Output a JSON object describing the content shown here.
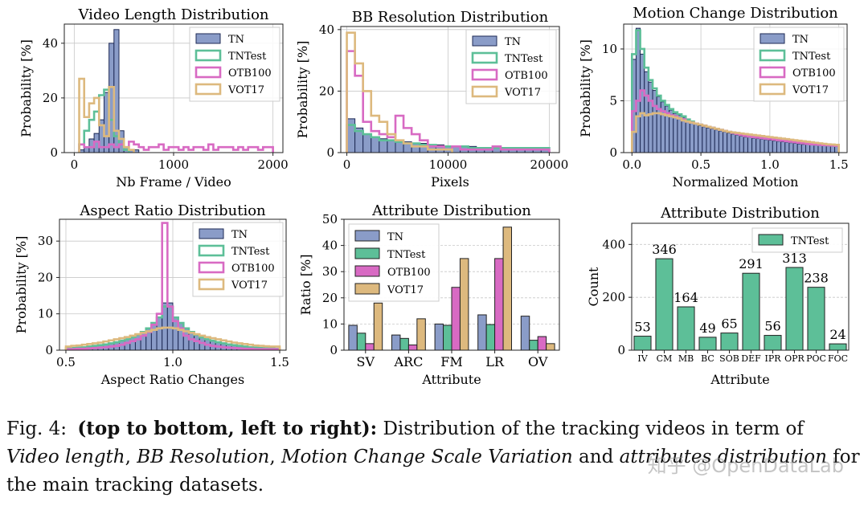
{
  "colors": {
    "TN": "#8a9cc8",
    "TN_edge": "#1e2a55",
    "TNTest": "#5dbf98",
    "OTB100": "#d86ac3",
    "VOT17": "#ddb97e",
    "grid": "#c8c8c8"
  },
  "chart_data": [
    {
      "id": "c1",
      "type": "histogram",
      "title": "Video Length Distribution",
      "xlabel": "Nb Frame / Video",
      "ylabel": "Probability [%]",
      "xlim": [
        -100,
        2100
      ],
      "ylim": [
        0,
        47
      ],
      "xticks": [
        0,
        1000,
        2000
      ],
      "yticks": [
        0,
        20,
        40
      ],
      "legend": [
        "TN",
        "TNTest",
        "OTB100",
        "VOT17"
      ],
      "legend_position": "top-right",
      "bins": {
        "start": 50,
        "width": 50
      },
      "series": [
        {
          "name": "TN",
          "style": "bar",
          "values": [
            1,
            2,
            5,
            7,
            12,
            22,
            40,
            45,
            8,
            2,
            1,
            1
          ]
        },
        {
          "name": "TNTest",
          "style": "step",
          "values": [
            3,
            8,
            12,
            15,
            21,
            23,
            12,
            6,
            3,
            1
          ]
        },
        {
          "name": "OTB100",
          "style": "step",
          "values": [
            3,
            2,
            2,
            4,
            2,
            2,
            3,
            2,
            3,
            2,
            4,
            3,
            2,
            1,
            2,
            2,
            3,
            1,
            2,
            2,
            1,
            2,
            1,
            2,
            2,
            1,
            3,
            1,
            2,
            2,
            2,
            1,
            2,
            1,
            2,
            2,
            1,
            2,
            2
          ]
        },
        {
          "name": "VOT17",
          "style": "step",
          "values": [
            27,
            13,
            18,
            20,
            10,
            6,
            24,
            8,
            5,
            2,
            1
          ]
        }
      ]
    },
    {
      "id": "c2",
      "type": "histogram",
      "title": "BB Resolution Distribution",
      "xlabel": "Pixels",
      "ylabel": "Probability [%]",
      "xlim": [
        -600,
        21000
      ],
      "ylim": [
        0,
        41
      ],
      "xticks": [
        0,
        10000,
        20000
      ],
      "yticks": [
        0,
        20,
        40
      ],
      "legend": [
        "TN",
        "TNTest",
        "OTB100",
        "VOT17"
      ],
      "legend_position": "top-right",
      "bins": {
        "start": 0,
        "width": 800
      },
      "series": [
        {
          "name": "TN",
          "style": "bar",
          "values": [
            11,
            8,
            6,
            5,
            4.5,
            4,
            4,
            3.5,
            3,
            3,
            2.5,
            2.5,
            2,
            2,
            2,
            2,
            1.5,
            1.5,
            1.5,
            1.5,
            1.5,
            1.5,
            1.5,
            1.5,
            1.5
          ]
        },
        {
          "name": "TNTest",
          "style": "step",
          "values": [
            9,
            7,
            6,
            5,
            4,
            4,
            3.5,
            3,
            3,
            2.5,
            2.5,
            2,
            2,
            2,
            2,
            1.5,
            1.5,
            1.5,
            1.5,
            1.5,
            1.5,
            1.5,
            1.5,
            1.5,
            1.5
          ]
        },
        {
          "name": "OTB100",
          "style": "step",
          "values": [
            33,
            25,
            10,
            7,
            6,
            5,
            12,
            8,
            6,
            4,
            2,
            2,
            1,
            2,
            1,
            1,
            1,
            1,
            2,
            1,
            1,
            1,
            1,
            1,
            1
          ]
        },
        {
          "name": "VOT17",
          "style": "step",
          "values": [
            39,
            29,
            20,
            12,
            10,
            6,
            4,
            3,
            2,
            2,
            1,
            1,
            1
          ]
        }
      ]
    },
    {
      "id": "c3",
      "type": "histogram",
      "title": "Motion Change Distribution",
      "xlabel": "Normalized Motion",
      "ylabel": "Probability [%]",
      "xlim": [
        -0.06,
        1.56
      ],
      "ylim": [
        0,
        12.4
      ],
      "xticks": [
        0.0,
        0.5,
        1.0,
        1.5
      ],
      "yticks": [
        0,
        5,
        10
      ],
      "legend": [
        "TN",
        "TNTest",
        "OTB100",
        "VOT17"
      ],
      "legend_position": "top-right",
      "bins": {
        "start": 0,
        "width": 0.03
      },
      "series": [
        {
          "name": "TN",
          "style": "bar",
          "values": [
            9,
            12,
            9.5,
            7.8,
            6.8,
            6,
            5.4,
            4.9,
            4.5,
            4.1,
            3.8,
            3.6,
            3.4,
            3.2,
            3,
            2.8,
            2.6,
            2.5,
            2.4,
            2.3,
            2.2,
            2.1,
            2.0,
            1.9,
            1.8,
            1.7,
            1.6,
            1.5,
            1.5,
            1.4,
            1.35,
            1.3,
            1.25,
            1.2,
            1.15,
            1.1,
            1.05,
            1.0,
            0.95,
            0.9,
            0.85,
            0.8,
            0.78,
            0.75,
            0.72,
            0.7,
            0.68,
            0.65,
            0.62,
            0.6
          ]
        },
        {
          "name": "TNTest",
          "style": "step",
          "values": [
            9.5,
            11.8,
            10,
            8.2,
            7,
            6.2,
            5.5,
            5,
            4.6,
            4.2,
            3.9,
            3.7,
            3.5,
            3.2,
            3,
            2.8,
            2.7,
            2.6,
            2.5,
            2.4,
            2.3,
            2.2,
            2.1,
            2.0,
            1.9,
            1.8,
            1.7,
            1.6,
            1.55,
            1.5,
            1.45,
            1.4,
            1.35,
            1.3,
            1.25,
            1.2,
            1.15,
            1.1,
            1.05,
            1.0,
            0.95,
            0.9,
            0.85,
            0.8,
            0.78,
            0.75,
            0.72,
            0.7,
            0.68,
            0.65
          ]
        },
        {
          "name": "OTB100",
          "style": "step",
          "values": [
            4,
            5,
            6,
            5.5,
            5,
            4.5,
            4.2,
            4,
            3.8,
            3.6,
            3.5,
            3.3,
            3.2,
            3,
            2.9,
            2.8,
            2.7,
            2.6,
            2.5,
            2.4,
            2.3,
            2.2,
            2.1,
            2.0,
            1.9,
            1.8,
            1.7,
            1.6,
            1.55,
            1.5,
            1.45,
            1.4,
            1.35,
            1.3,
            1.25,
            1.2,
            1.15,
            1.1,
            1.05,
            1.0,
            0.95,
            0.9,
            0.85,
            0.8,
            0.78,
            0.75,
            0.72,
            0.7,
            0.68,
            0.65
          ]
        },
        {
          "name": "VOT17",
          "style": "step",
          "values": [
            2,
            3.5,
            3.8,
            3.6,
            3.7,
            3.8,
            3.8,
            3.7,
            3.6,
            3.5,
            3.4,
            3.3,
            3.1,
            3,
            2.9,
            2.8,
            2.7,
            2.6,
            2.5,
            2.4,
            2.3,
            2.2,
            2.1,
            2.0,
            1.95,
            1.9,
            1.85,
            1.8,
            1.75,
            1.7,
            1.65,
            1.6,
            1.55,
            1.5,
            1.45,
            1.4,
            1.35,
            1.3,
            1.25,
            1.2,
            1.15,
            1.1,
            1.05,
            1.0,
            0.95,
            0.9,
            0.85,
            0.8,
            0.78,
            0.75
          ]
        }
      ]
    },
    {
      "id": "c4",
      "type": "histogram",
      "title": "Aspect Ratio Distribution",
      "xlabel": "Aspect Ratio Changes",
      "ylabel": "Probability [%]",
      "xlim": [
        0.47,
        1.53
      ],
      "ylim": [
        0,
        36
      ],
      "xticks": [
        0.5,
        1.0,
        1.5
      ],
      "yticks": [
        0,
        10,
        20,
        30
      ],
      "legend": [
        "TN",
        "TNTest",
        "OTB100",
        "VOT17"
      ],
      "legend_position": "top-right",
      "bins": {
        "start": 0.5,
        "width": 0.025
      },
      "series": [
        {
          "name": "TN",
          "style": "bar",
          "values": [
            0.5,
            0.6,
            0.7,
            0.8,
            1.0,
            1.2,
            1.4,
            1.6,
            1.9,
            2.2,
            2.6,
            3.0,
            3.5,
            4.2,
            5,
            6,
            7.5,
            9,
            13,
            13,
            9,
            7.5,
            6,
            5,
            4.2,
            3.5,
            3.0,
            2.6,
            2.2,
            1.9,
            1.6,
            1.4,
            1.2,
            1.0,
            0.8,
            0.7,
            0.6,
            0.5,
            0.5,
            0.4
          ]
        },
        {
          "name": "TNTest",
          "style": "step",
          "values": [
            0.5,
            0.6,
            0.7,
            0.8,
            1.0,
            1.2,
            1.4,
            1.6,
            1.9,
            2.2,
            2.6,
            3.0,
            3.5,
            4.2,
            5,
            6,
            7.5,
            9,
            12,
            12,
            9,
            7.5,
            6,
            5,
            4.2,
            3.5,
            3.0,
            2.6,
            2.2,
            1.9,
            1.6,
            1.4,
            1.2,
            1.0,
            0.8,
            0.7,
            0.6,
            0.5,
            0.5,
            0.4
          ]
        },
        {
          "name": "OTB100",
          "style": "step",
          "values": [
            0.3,
            0.3,
            0.4,
            0.4,
            0.5,
            0.6,
            0.7,
            0.8,
            1,
            1.2,
            1.5,
            2,
            2.5,
            3,
            4,
            5,
            7,
            10,
            35,
            12,
            8,
            6,
            4,
            3,
            2.5,
            2,
            1.5,
            1.2,
            1,
            0.8,
            0.7,
            0.6,
            0.5,
            0.4,
            0.4,
            0.3,
            0.3,
            0.3,
            0.3,
            0.3
          ]
        },
        {
          "name": "VOT17",
          "style": "step",
          "values": [
            1,
            1.2,
            1.3,
            1.5,
            1.7,
            1.9,
            2.1,
            2.4,
            2.7,
            3,
            3.3,
            3.6,
            4,
            4.4,
            4.8,
            5.2,
            5.6,
            6,
            6.2,
            6.2,
            6,
            5.6,
            5.2,
            4.8,
            4.4,
            4,
            3.6,
            3.3,
            3,
            2.7,
            2.4,
            2.1,
            1.9,
            1.7,
            1.5,
            1.3,
            1.2,
            1.1,
            1,
            1
          ]
        }
      ]
    },
    {
      "id": "c5",
      "type": "bar",
      "title": "Attribute Distribution",
      "xlabel": "Attribute",
      "ylabel": "Ratio [%]",
      "ylim": [
        0,
        50
      ],
      "yticks": [
        0,
        10,
        20,
        30,
        40,
        50
      ],
      "legend_position": "top-left",
      "categories": [
        "SV",
        "ARC",
        "FM",
        "LR",
        "OV"
      ],
      "series": [
        {
          "name": "TN",
          "values": [
            9.5,
            5.8,
            10,
            13.5,
            13
          ]
        },
        {
          "name": "TNTest",
          "values": [
            6.5,
            4.5,
            9.5,
            9.8,
            3.8
          ]
        },
        {
          "name": "OTB100",
          "values": [
            2.5,
            2,
            24,
            35,
            5.2
          ]
        },
        {
          "name": "VOT17",
          "values": [
            18,
            12,
            35,
            47,
            2.5
          ]
        }
      ]
    },
    {
      "id": "c6",
      "type": "bar",
      "title": "Attribute Distribution",
      "xlabel": "Attribute",
      "ylabel": "Count",
      "ylim": [
        0,
        480
      ],
      "yticks": [
        0,
        200,
        400
      ],
      "legend_position": "top-right",
      "categories": [
        "IV",
        "CM",
        "MB",
        "BC",
        "SOB",
        "DEF",
        "IPR",
        "OPR",
        "POC",
        "FOC"
      ],
      "series": [
        {
          "name": "TNTest",
          "values": [
            53,
            346,
            164,
            49,
            65,
            291,
            56,
            313,
            238,
            24
          ]
        }
      ]
    }
  ],
  "caption": {
    "label": "Fig. 4:",
    "bold": "(top to bottom, left to right):",
    "text1": "Distribution of the tracking videos in term of",
    "i1": "Video length",
    "i2": "BB Resolution",
    "i3": "Motion Change",
    "i4": "Scale Variation",
    "and": "and",
    "i5": "attributes distribution",
    "text2": "for the main tracking datasets."
  },
  "watermark": "知乎 @OpenDataLab"
}
